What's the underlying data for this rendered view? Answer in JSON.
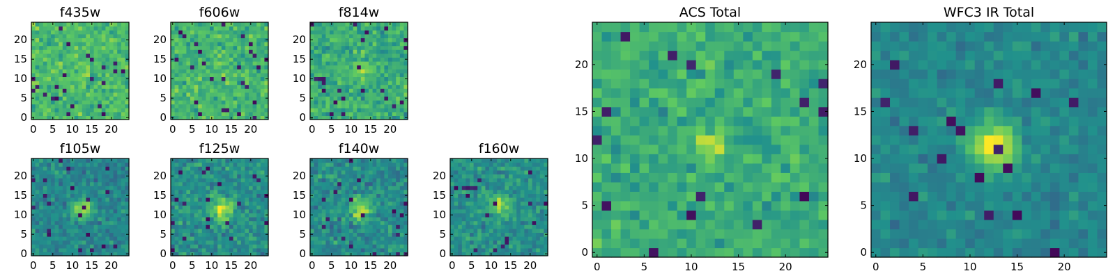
{
  "colormap": [
    "#440154",
    "#3b528b",
    "#21918c",
    "#5ec962",
    "#fde725"
  ],
  "chart_data": [
    {
      "type": "heatmap",
      "title": "f435w",
      "xlim": [
        0,
        24
      ],
      "ylim": [
        0,
        24
      ],
      "xticks": [
        0,
        5,
        10,
        15,
        20
      ],
      "yticks": [
        0,
        5,
        10,
        15,
        20
      ],
      "grid": false,
      "peak": {
        "x": 12,
        "y": 12,
        "strength": 0.05,
        "width": 2.5
      },
      "noise": 0.22,
      "base": 0.68,
      "seed": 11,
      "pixel_size": 1
    },
    {
      "type": "heatmap",
      "title": "f606w",
      "xlim": [
        0,
        24
      ],
      "ylim": [
        0,
        24
      ],
      "xticks": [
        0,
        5,
        10,
        15,
        20
      ],
      "yticks": [
        0,
        5,
        10,
        15,
        20
      ],
      "grid": false,
      "peak": {
        "x": 12,
        "y": 12,
        "strength": 0.05,
        "width": 2.5
      },
      "noise": 0.22,
      "base": 0.66,
      "seed": 23,
      "pixel_size": 1
    },
    {
      "type": "heatmap",
      "title": "f814w",
      "xlim": [
        0,
        24
      ],
      "ylim": [
        0,
        24
      ],
      "xticks": [
        0,
        5,
        10,
        15,
        20
      ],
      "yticks": [
        0,
        5,
        10,
        15,
        20
      ],
      "grid": false,
      "peak": {
        "x": 13,
        "y": 12,
        "strength": 0.18,
        "width": 1.8
      },
      "noise": 0.24,
      "base": 0.62,
      "seed": 37,
      "pixel_size": 1
    },
    {
      "type": "heatmap",
      "title": "f105w",
      "xlim": [
        0,
        24
      ],
      "ylim": [
        0,
        24
      ],
      "xticks": [
        0,
        5,
        10,
        15,
        20
      ],
      "yticks": [
        0,
        5,
        10,
        15,
        20
      ],
      "grid": false,
      "peak": {
        "x": 12.5,
        "y": 11.5,
        "strength": 0.45,
        "width": 1.8
      },
      "noise": 0.2,
      "base": 0.46,
      "seed": 41,
      "pixel_size": 1
    },
    {
      "type": "heatmap",
      "title": "f125w",
      "xlim": [
        0,
        24
      ],
      "ylim": [
        0,
        24
      ],
      "xticks": [
        0,
        5,
        10,
        15,
        20
      ],
      "yticks": [
        0,
        5,
        10,
        15,
        20
      ],
      "grid": false,
      "peak": {
        "x": 12.5,
        "y": 11.5,
        "strength": 0.4,
        "width": 2.0
      },
      "noise": 0.22,
      "base": 0.5,
      "seed": 53,
      "pixel_size": 1
    },
    {
      "type": "heatmap",
      "title": "f140w",
      "xlim": [
        0,
        24
      ],
      "ylim": [
        0,
        24
      ],
      "xticks": [
        0,
        5,
        10,
        15,
        20
      ],
      "yticks": [
        0,
        5,
        10,
        15,
        20
      ],
      "grid": false,
      "peak": {
        "x": 12.5,
        "y": 11.5,
        "strength": 0.42,
        "width": 2.0
      },
      "noise": 0.22,
      "base": 0.48,
      "seed": 67,
      "pixel_size": 1
    },
    {
      "type": "heatmap",
      "title": "f160w",
      "xlim": [
        0,
        24
      ],
      "ylim": [
        0,
        24
      ],
      "xticks": [
        0,
        5,
        10,
        15,
        20
      ],
      "yticks": [
        0,
        5,
        10,
        15,
        20
      ],
      "grid": false,
      "peak": {
        "x": 12,
        "y": 12.5,
        "strength": 0.4,
        "width": 1.8
      },
      "noise": 0.2,
      "base": 0.5,
      "seed": 79,
      "pixel_size": 1
    },
    {
      "type": "heatmap",
      "title": "ACS Total",
      "xlim": [
        0,
        24
      ],
      "ylim": [
        0,
        24
      ],
      "xticks": [
        0,
        5,
        10,
        15,
        20
      ],
      "yticks": [
        0,
        5,
        10,
        15,
        20
      ],
      "grid": false,
      "peak": {
        "x": 12.5,
        "y": 11.5,
        "strength": 0.3,
        "width": 1.2
      },
      "noise": 0.2,
      "base": 0.62,
      "seed": 97,
      "pixel_size": 1
    },
    {
      "type": "heatmap",
      "title": "WFC3 IR Total",
      "xlim": [
        0,
        24
      ],
      "ylim": [
        0,
        24
      ],
      "xticks": [
        0,
        5,
        10,
        15,
        20
      ],
      "yticks": [
        0,
        5,
        10,
        15,
        20
      ],
      "grid": false,
      "peak": {
        "x": 12.5,
        "y": 11.5,
        "strength": 0.55,
        "width": 1.7
      },
      "noise": 0.14,
      "base": 0.46,
      "seed": 113,
      "pixel_size": 1
    }
  ]
}
